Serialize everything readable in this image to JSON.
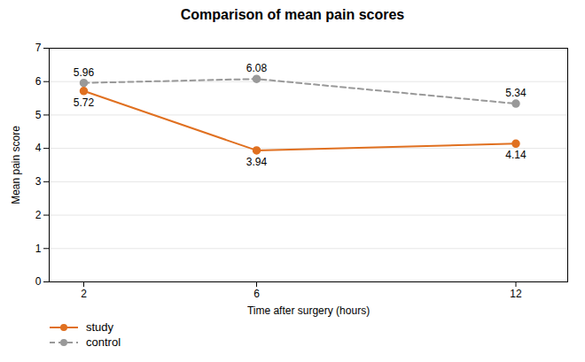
{
  "chart_data": {
    "type": "line",
    "title": "Comparison of mean pain scores",
    "xlabel": "Time after surgery (hours)",
    "ylabel": "Mean pain score",
    "x": [
      2,
      6,
      12
    ],
    "series": [
      {
        "name": "study",
        "color": "#E07020",
        "values": [
          5.72,
          3.94,
          4.14
        ],
        "marker": "circle",
        "line_style": "solid"
      },
      {
        "name": "control",
        "color": "#999999",
        "values": [
          5.96,
          6.08,
          5.34
        ],
        "marker": "circle",
        "line_style": "dashed"
      }
    ],
    "xlim": [
      1.2,
      13.2
    ],
    "xticks": [
      2,
      6,
      12
    ],
    "ylim": [
      0,
      7
    ],
    "yticks": [
      0,
      1,
      2,
      3,
      4,
      5,
      6,
      7
    ],
    "grid": true,
    "data_labels": true,
    "legend": "below"
  }
}
